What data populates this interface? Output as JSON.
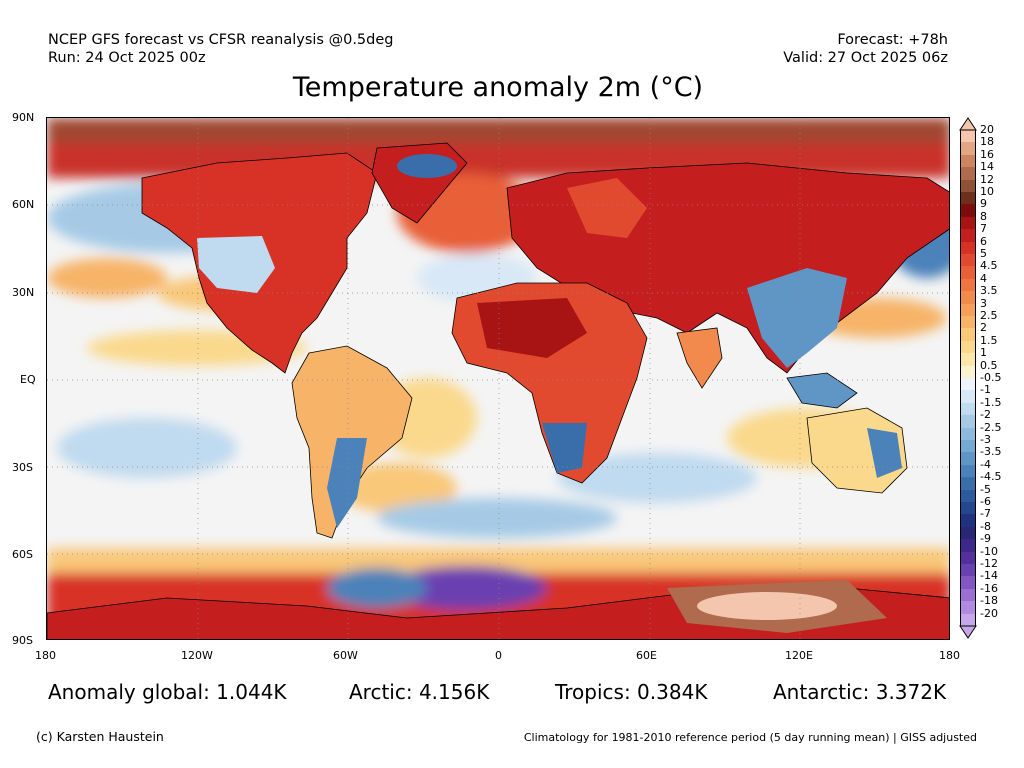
{
  "header": {
    "model_line": "NCEP GFS forecast vs CFSR reanalysis @0.5deg",
    "run_line": "Run: 24 Oct 2025 00z",
    "forecast_line": "Forecast: +78h",
    "valid_line": "Valid: 27 Oct 2025 06z"
  },
  "title": "Temperature anomaly 2m (°C)",
  "axes": {
    "lat_labels": [
      "90N",
      "60N",
      "30N",
      "EQ",
      "30S",
      "60S",
      "90S"
    ],
    "lon_labels": [
      "180",
      "120W",
      "60W",
      "0",
      "60E",
      "120E",
      "180"
    ]
  },
  "colorbar": {
    "labels": [
      "20",
      "18",
      "16",
      "14",
      "12",
      "10",
      "9",
      "8",
      "7",
      "6",
      "5",
      "4.5",
      "4",
      "3.5",
      "3",
      "2.5",
      "2",
      "1.5",
      "1",
      "0.5",
      "-0.5",
      "-1",
      "-1.5",
      "-2",
      "-2.5",
      "-3",
      "-3.5",
      "-4",
      "-4.5",
      "-5",
      "-6",
      "-7",
      "-8",
      "-9",
      "-10",
      "-12",
      "-14",
      "-16",
      "-18",
      "-20"
    ],
    "colors": [
      "#f3c6ad",
      "#e3a684",
      "#cc8463",
      "#b06a4d",
      "#8f5138",
      "#6e2f1c",
      "#7d0d0d",
      "#a81414",
      "#c41e1e",
      "#d83226",
      "#e24a30",
      "#e85f38",
      "#ee7442",
      "#f28a4d",
      "#f5a05a",
      "#f7b468",
      "#f9c879",
      "#fad98d",
      "#fbe8a8",
      "#fbf3cf",
      "#eef4fb",
      "#d8e8f6",
      "#c0daef",
      "#a6cae6",
      "#8dbadc",
      "#76a9d2",
      "#6096c6",
      "#4b82b9",
      "#3a6eab",
      "#2d5a9d",
      "#24468f",
      "#213380",
      "#2a2676",
      "#3b2888",
      "#53309c",
      "#6a41b0",
      "#8257c3",
      "#9a70d3",
      "#b18be0",
      "#c6a8ea"
    ]
  },
  "stats": {
    "global": "Anomaly global: 1.044K",
    "arctic": "Arctic: 4.156K",
    "tropics": "Tropics: 0.384K",
    "antarctic": "Antarctic: 3.372K"
  },
  "footer": {
    "credit": "(c) Karsten Haustein",
    "climatology": "Climatology for 1981-2010 reference period (5 day running mean) | GISS adjusted"
  }
}
